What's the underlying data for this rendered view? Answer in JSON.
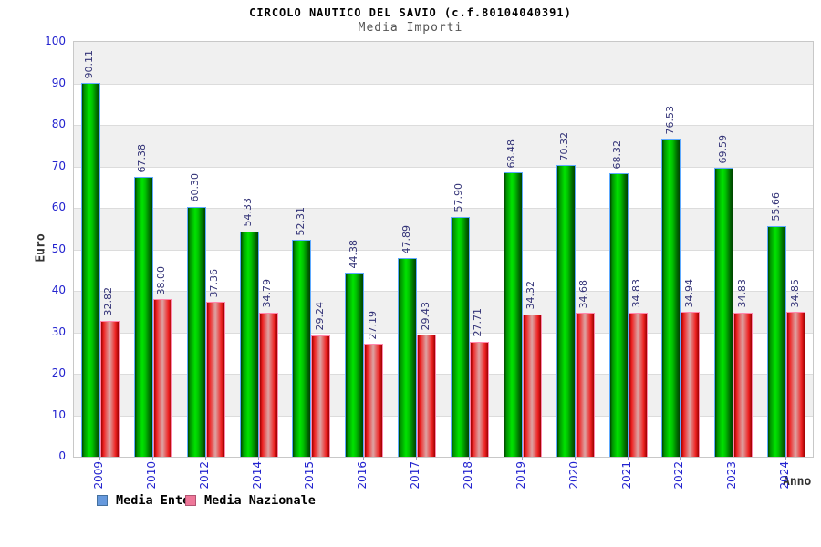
{
  "header": {
    "title": "CIRCOLO NAUTICO DEL SAVIO (c.f.80104040391)",
    "subtitle": "Media Importi"
  },
  "chart_data": {
    "type": "bar",
    "title": "CIRCOLO NAUTICO DEL SAVIO (c.f.80104040391)",
    "subtitle": "Media Importi",
    "categories": [
      "2009",
      "2010",
      "2012",
      "2014",
      "2015",
      "2016",
      "2017",
      "2018",
      "2019",
      "2020",
      "2021",
      "2022",
      "2023",
      "2024"
    ],
    "series": [
      {
        "name": "Media Ente",
        "values": [
          90.11,
          67.38,
          60.3,
          54.33,
          52.31,
          44.38,
          47.89,
          57.9,
          68.48,
          70.32,
          68.32,
          76.53,
          69.59,
          55.66
        ],
        "labels": [
          "90.11",
          "67.38",
          "60.30",
          "54.33",
          "52.31",
          "44.38",
          "47.89",
          "57.90",
          "68.48",
          "70.32",
          "68.32",
          "76.53",
          "69.59",
          "55.66"
        ]
      },
      {
        "name": "Media Nazionale",
        "values": [
          32.82,
          38.0,
          37.36,
          34.79,
          29.24,
          27.19,
          29.43,
          27.71,
          34.32,
          34.68,
          34.83,
          34.94,
          34.83,
          34.85
        ],
        "labels": [
          "32.82",
          "38.00",
          "37.36",
          "34.79",
          "29.24",
          "27.19",
          "29.43",
          "27.71",
          "34.32",
          "34.68",
          "34.83",
          "34.94",
          "34.83",
          "34.85"
        ]
      }
    ],
    "xlabel": "Anno",
    "ylabel": "Euro",
    "ylim": [
      0,
      100
    ],
    "ytick_step": 10,
    "yticks": [
      "0",
      "10",
      "20",
      "30",
      "40",
      "50",
      "60",
      "70",
      "80",
      "90",
      "100"
    ],
    "grid": true,
    "alternating_bands": true,
    "legend_position": "bottom-left"
  },
  "legend": {
    "items": [
      {
        "label": "Media Ente",
        "swatch_fill": "#6699dd",
        "swatch_border": "#44719f"
      },
      {
        "label": "Media Nazionale",
        "swatch_fill": "#ee7799",
        "swatch_border": "#b25472"
      }
    ]
  },
  "colors": {
    "tick_label_blue": "#2323cf",
    "value_label_navy": "#333377",
    "band_gray": "#f0f0f0",
    "grid_line": "#dcdcdc",
    "plot_border": "#c8c8c8",
    "axis_title_gray": "#333333",
    "subtitle_gray": "#555555",
    "bar_ente_edge": "#004200",
    "bar_ente_bright": "#00e400",
    "bar_ente_cap": "#5faaff",
    "bar_naz_edge": "#9c0000",
    "bar_naz_red": "#ee2222",
    "bar_naz_center": "#dda4a4",
    "bar_naz_cap": "#ff88ad"
  }
}
